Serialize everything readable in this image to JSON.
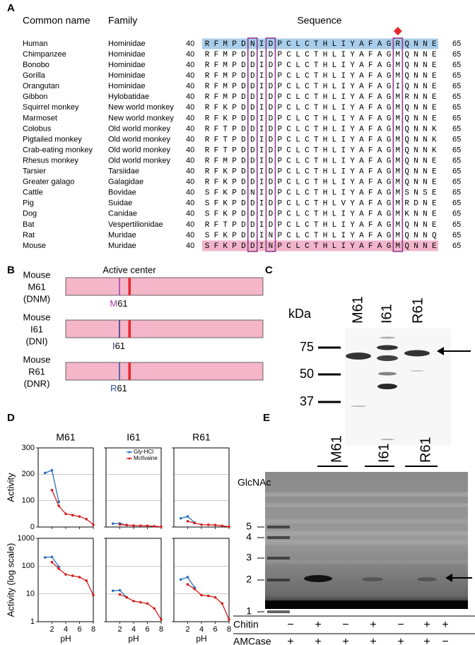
{
  "panel_a": {
    "label": "A",
    "headers": {
      "common_name": "Common name",
      "family": "Family",
      "sequence": "Sequence"
    },
    "rows": [
      {
        "name": "Human",
        "family": "Hominidae",
        "start": 40,
        "sequence": "RFMPDNIDPCLCTHLIYAFAGRQNNE",
        "end": 65,
        "name_color": "#2a9fd8",
        "band_color": "#a8cdea"
      },
      {
        "name": "Chimpanzee",
        "family": "Hominidae",
        "start": 40,
        "sequence": "RFMPDDIDPCLCTHLIYAFAGMQNNE",
        "end": 65
      },
      {
        "name": "Bonobo",
        "family": "Hominidae",
        "start": 40,
        "sequence": "RFMPDDIDPCLCTHLIYAFAGMQNNE",
        "end": 65
      },
      {
        "name": "Gorilla",
        "family": "Hominidae",
        "start": 40,
        "sequence": "RFMPDDIDPCLCTHLIYAFAGMQNNE",
        "end": 65
      },
      {
        "name": "Orangutan",
        "family": "Hominidae",
        "start": 40,
        "sequence": "RFMPDDIDPCLCTHLIYAFAGIQNNE",
        "end": 65
      },
      {
        "name": "Gibbon",
        "family": "Hylobatidae",
        "start": 40,
        "sequence": "RFMPDDIDPCLCTHLIYAFAGMRNNE",
        "end": 65
      },
      {
        "name": "Squirrel monkey",
        "family": "New world monkey",
        "start": 40,
        "sequence": "RFKPDDIDPCLCTHLIYAFAGMQNNE",
        "end": 65
      },
      {
        "name": "Marmoset",
        "family": "New world monkey",
        "start": 40,
        "sequence": "RFKPDDIDPCLCTHLIYAFAGMQNNE",
        "end": 65
      },
      {
        "name": "Colobus",
        "family": "Old world monkey",
        "start": 40,
        "sequence": "RFTPDDIDPCLCTHLIYAFAGMQNNK",
        "end": 65
      },
      {
        "name": "Pigtailed monkey",
        "family": "Old world monkey",
        "start": 40,
        "sequence": "RFTPDDIDPCLCTHLIYAFAGMQNNK",
        "end": 65
      },
      {
        "name": "Crab-eating monkey",
        "family": "Old world monkey",
        "start": 40,
        "sequence": "RFTPDDIDPCLCTHLIYAFAGMQNNK",
        "end": 65
      },
      {
        "name": "Rhesus monkey",
        "family": "Old world monkey",
        "start": 40,
        "sequence": "RFMPDDIDPCLCTHLIYAFAGMQNNE",
        "end": 65
      },
      {
        "name": "Tarsier",
        "family": "Tarsiidae",
        "start": 40,
        "sequence": "RFKPDDIDPCLCTHLIYAFAGMQNNE",
        "end": 65
      },
      {
        "name": "Greater galago",
        "family": "Galagidae",
        "start": 40,
        "sequence": "RFKPDDIDPCLCTHLIYAFAGMQNNE",
        "end": 65
      },
      {
        "name": "Cattle",
        "family": "Bovidae",
        "start": 40,
        "sequence": "SFKPDNIDPCLCTHLIYAFAGMSNSE",
        "end": 65
      },
      {
        "name": "Pig",
        "family": "Suidae",
        "start": 40,
        "sequence": "SFKPDDIDPCLCTHLVYAFAGMRDNE",
        "end": 65
      },
      {
        "name": "Dog",
        "family": "Canidae",
        "start": 40,
        "sequence": "SFKPDDIDPCLCTHLIYAFAGMKNNE",
        "end": 65
      },
      {
        "name": "Bat",
        "family": "Vespertilionidae",
        "start": 40,
        "sequence": "RFTPDDIDPCLCTHLIYAFAGMQNNE",
        "end": 65
      },
      {
        "name": "Rat",
        "family": "Muridae",
        "start": 40,
        "sequence": "SFKPDDINPCLCTHLIYAFAGMQNNQ",
        "end": 65
      },
      {
        "name": "Mouse",
        "family": "Muridae",
        "start": 40,
        "sequence": "SFKPDDINPCLCTHLIYAFAGMQNNE",
        "end": 65,
        "name_color": "#e8262d",
        "band_color": "#f2b5cb"
      }
    ]
  },
  "panel_b": {
    "label": "B",
    "active_center": "Active center",
    "rows": [
      {
        "species": "Mouse",
        "variant": "M61",
        "code": "(DNM)",
        "residue": "M",
        "position": "61",
        "label_color": "#e8262d",
        "residue_color": "#a040a0"
      },
      {
        "species": "Mouse",
        "variant": "I61",
        "code": "(DNI)",
        "residue": "I",
        "position": "61",
        "label_color": "#000000",
        "residue_color": "#303080"
      },
      {
        "species": "Mouse",
        "variant": "R61",
        "code": "(DNR)",
        "residue": "R",
        "position": "61",
        "label_color": "#000000",
        "residue_color": "#2a50a8"
      }
    ]
  },
  "panel_c": {
    "label": "C",
    "unit": "kDa",
    "lanes": [
      "M61",
      "I61",
      "R61"
    ],
    "markers": [
      "75",
      "50",
      "37"
    ]
  },
  "panel_d": {
    "label": "D"
  },
  "chart_data": [
    {
      "type": "line",
      "title": "M61",
      "ylabel": "Activity",
      "xlim": [
        0,
        8
      ],
      "xticks": [
        2,
        4,
        6,
        8
      ],
      "xtick_labels": false,
      "ylim": [
        0,
        300
      ],
      "yticks": [
        0,
        100,
        200,
        300
      ],
      "ytick_labels": true,
      "log": false,
      "grid": true,
      "series": [
        {
          "color": "#2a6fc0",
          "x": [
            1,
            2,
            3
          ],
          "values": [
            205,
            215,
            95
          ]
        },
        {
          "color": "#d42020",
          "x": [
            2,
            3,
            4,
            5,
            6,
            7,
            8
          ],
          "values": [
            140,
            80,
            50,
            45,
            40,
            30,
            9
          ]
        }
      ]
    },
    {
      "type": "line",
      "title": "I61",
      "xlim": [
        0,
        8
      ],
      "xticks": [
        2,
        4,
        6,
        8
      ],
      "xtick_labels": false,
      "ylim": [
        0,
        300
      ],
      "yticks": [
        0,
        100,
        200,
        300
      ],
      "ytick_labels": false,
      "log": false,
      "grid": true,
      "legend": "upper right",
      "series": [
        {
          "name": "Gly-HCl",
          "color": "#2a6fc0",
          "x": [
            1,
            2,
            3
          ],
          "values": [
            13,
            13.5,
            7.5
          ]
        },
        {
          "name": "McIlvaine",
          "color": "#d42020",
          "x": [
            2,
            3,
            4,
            5,
            6,
            7,
            8
          ],
          "values": [
            9.5,
            7.5,
            5.5,
            5,
            4.5,
            3,
            1.2
          ]
        }
      ]
    },
    {
      "type": "line",
      "title": "R61",
      "xlim": [
        0,
        8
      ],
      "xticks": [
        2,
        4,
        6,
        8
      ],
      "xtick_labels": false,
      "ylim": [
        0,
        300
      ],
      "yticks": [
        0,
        100,
        200,
        300
      ],
      "ytick_labels": false,
      "log": false,
      "grid": true,
      "series": [
        {
          "color": "#2a6fc0",
          "x": [
            1,
            2,
            3
          ],
          "values": [
            33,
            40,
            17
          ]
        },
        {
          "color": "#d42020",
          "x": [
            2,
            3,
            4,
            5,
            6,
            7,
            8
          ],
          "values": [
            22,
            15,
            9,
            8.5,
            7.5,
            4.5,
            1.2
          ]
        }
      ]
    },
    {
      "type": "line",
      "ylabel": "Activity (log scale)",
      "xlabel": "pH",
      "xlim": [
        0,
        8
      ],
      "xticks": [
        2,
        4,
        6,
        8
      ],
      "xtick_labels": true,
      "ylim": [
        1,
        1000
      ],
      "yticks": [
        1,
        10,
        100,
        1000
      ],
      "ytick_labels": true,
      "log": true,
      "grid": true,
      "series": [
        {
          "color": "#2a6fc0",
          "x": [
            1,
            2,
            3
          ],
          "values": [
            205,
            215,
            95
          ]
        },
        {
          "color": "#d42020",
          "x": [
            2,
            3,
            4,
            5,
            6,
            7,
            8
          ],
          "values": [
            140,
            80,
            50,
            45,
            40,
            30,
            9
          ]
        }
      ]
    },
    {
      "type": "line",
      "xlabel": "pH",
      "xlim": [
        0,
        8
      ],
      "xticks": [
        2,
        4,
        6,
        8
      ],
      "xtick_labels": true,
      "ylim": [
        1,
        1000
      ],
      "yticks": [
        1,
        10,
        100,
        1000
      ],
      "ytick_labels": false,
      "log": true,
      "grid": true,
      "series": [
        {
          "color": "#2a6fc0",
          "x": [
            1,
            2,
            3
          ],
          "values": [
            13,
            13.5,
            7.5
          ]
        },
        {
          "color": "#d42020",
          "x": [
            2,
            3,
            4,
            5,
            6,
            7,
            8
          ],
          "values": [
            9.5,
            7.5,
            5.5,
            5,
            4.5,
            3,
            1.2
          ]
        }
      ]
    },
    {
      "type": "line",
      "xlabel": "pH",
      "xlim": [
        0,
        8
      ],
      "xticks": [
        2,
        4,
        6,
        8
      ],
      "xtick_labels": true,
      "ylim": [
        1,
        1000
      ],
      "yticks": [
        1,
        10,
        100,
        1000
      ],
      "ytick_labels": false,
      "log": true,
      "grid": true,
      "series": [
        {
          "color": "#2a6fc0",
          "x": [
            1,
            2,
            3
          ],
          "values": [
            33,
            40,
            17
          ]
        },
        {
          "color": "#d42020",
          "x": [
            2,
            3,
            4,
            5,
            6,
            7,
            8
          ],
          "values": [
            22,
            15,
            9,
            8.5,
            7.5,
            4.5,
            1.2
          ]
        }
      ]
    }
  ],
  "panel_e": {
    "label": "E",
    "ladder_title": "GlcNAc",
    "ladder": [
      "5",
      "4",
      "3",
      "2",
      "1"
    ],
    "lanes": [
      "M61",
      "I61",
      "R61"
    ],
    "table": [
      {
        "label": "Chitin",
        "cells": [
          "−",
          "+",
          "−",
          "+",
          "−",
          "+",
          "+"
        ]
      },
      {
        "label": "AMCase",
        "cells": [
          "+",
          "+",
          "+",
          "+",
          "+",
          "+",
          "−"
        ]
      }
    ]
  }
}
